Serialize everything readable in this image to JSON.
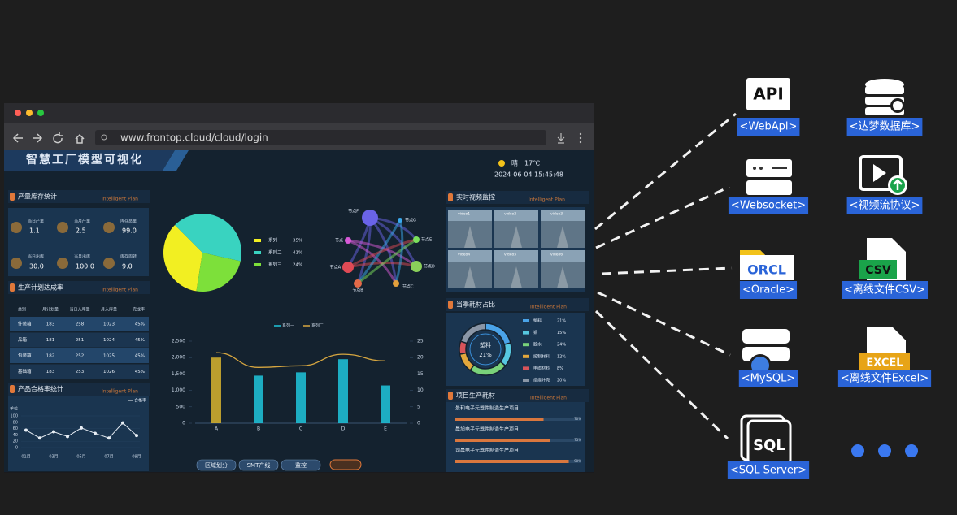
{
  "browser": {
    "url": "www.frontop.cloud/cloud/login"
  },
  "dashboard": {
    "title": "智慧工厂模型可视化",
    "weather": "晴",
    "temperature": "17℃",
    "datetime": "2024-06-04 15:45:48",
    "inventory": {
      "title": "产量库存统计",
      "subtitle": "Intelligent Plan",
      "items": [
        {
          "label": "当日产量",
          "value": "1.1"
        },
        {
          "label": "当月产量",
          "value": "2.5"
        },
        {
          "label": "库存总量",
          "value": "99.0"
        },
        {
          "label": "当日出库",
          "value": "30.0"
        },
        {
          "label": "当月出库",
          "value": "100.0"
        },
        {
          "label": "库存周转",
          "value": "9.0"
        }
      ]
    },
    "plan": {
      "title": "生产计划达成率",
      "subtitle": "Intelligent Plan",
      "header": [
        "类别",
        "月计划量",
        "当日入库量",
        "月入库量",
        "完成率"
      ],
      "rows": [
        [
          "件装箱",
          183,
          258,
          1023,
          "45%"
        ],
        [
          "品箱",
          181,
          251,
          1024,
          "45%"
        ],
        [
          "包装箱",
          182,
          252,
          1025,
          "45%"
        ],
        [
          "基础箱",
          183,
          253,
          1026,
          "45%"
        ]
      ]
    },
    "quality": {
      "type": "line",
      "title": "产品合格率统计",
      "subtitle": "Intelligent Plan",
      "series_name": "合格率",
      "y_label": "单位",
      "categories": [
        "01月",
        null,
        "03月",
        null,
        "05月",
        null,
        "07月",
        null,
        "09月"
      ],
      "values": [
        55,
        30,
        50,
        35,
        62,
        45,
        30,
        78,
        38
      ],
      "color": "#e8eef5",
      "ylim": [
        0,
        100
      ],
      "yticks": [
        0,
        20,
        40,
        60,
        80,
        100
      ]
    },
    "pie": {
      "type": "pie",
      "categories": [
        "系列一",
        "系列二",
        "系列三"
      ],
      "values": [
        35,
        41,
        24
      ],
      "value_labels": [
        "35%",
        "41%",
        "24%"
      ],
      "colors": [
        "#f2ef22",
        "#39d3c0",
        "#7de03a"
      ]
    },
    "network": {
      "nodes": [
        "节点F",
        "节点G",
        "节点E",
        "节点D",
        "节点C",
        "节点B",
        "节点A",
        "节点"
      ]
    },
    "combo": {
      "type": "bar",
      "categories": [
        "A",
        "B",
        "C",
        "D",
        "E"
      ],
      "series": [
        {
          "name": "系列一",
          "color": "#1ec6dc",
          "colors": [
            "#d8b42e",
            "#1ec6dc",
            "#1ec6dc",
            "#1ec6dc",
            "#1ec6dc"
          ],
          "values": [
            2000,
            1450,
            1550,
            1950,
            1150
          ]
        },
        {
          "name": "系列二",
          "color": "#d6a640",
          "axis": "y2",
          "values": [
            21.5,
            17,
            17.5,
            21,
            19
          ]
        }
      ],
      "ylim": [
        0,
        2500
      ],
      "yticks": [
        0,
        {
          "value": 500,
          "label": "500"
        },
        {
          "value": 1000,
          "label": "1,000"
        },
        {
          "value": 1500,
          "label": "1,500"
        },
        {
          "value": 2000,
          "label": "2,000"
        },
        {
          "value": 2500,
          "label": "2,500"
        }
      ],
      "y2lim": [
        0,
        25
      ],
      "y2ticks": [
        0,
        5,
        10,
        15,
        20,
        25
      ]
    },
    "buttons": [
      "区域划分",
      "SMT产线",
      "监控"
    ],
    "video": {
      "title": "实时视频监控",
      "subtitle": "Intelligent Plan",
      "feeds": [
        "video1",
        "video2",
        "video3",
        "video4",
        "video5",
        "video6"
      ]
    },
    "materials": {
      "type": "pie",
      "title": "当季耗材占比",
      "subtitle": "Intelligent Plan",
      "categories": [
        "塑料",
        "铜",
        "胶水",
        "控制材料",
        "电缆材料",
        "绝缘外壳"
      ],
      "values": [
        21,
        15,
        24,
        12,
        8,
        20
      ],
      "value_labels": [
        "21%",
        "15%",
        "24%",
        "12%",
        "8%",
        "20%"
      ],
      "colors": [
        "#4aa3e8",
        "#56c7e0",
        "#79d27a",
        "#e3a73c",
        "#d8545a",
        "#8a96a6"
      ]
    },
    "projects": {
      "type": "bar",
      "title": "项目生产耗材",
      "subtitle": "Intelligent Plan",
      "categories": [
        "景和电子元器件制造生产项目",
        "晨旭电子元器件制造生产项目",
        "司晨电子元器件制造生产项目"
      ],
      "values": [
        70,
        75,
        90
      ],
      "value_labels": [
        "70%",
        "75%",
        "90%"
      ],
      "color": "#d9773e",
      "xlim": [
        0,
        100
      ]
    }
  },
  "sources": [
    {
      "icon_text": "API",
      "label": "<WebApi>"
    },
    {
      "label": "<达梦数据库>"
    },
    {
      "label": "<Websocket>"
    },
    {
      "label": "<视频流协议>"
    },
    {
      "icon_text": "ORCL",
      "label": "<Oracle>"
    },
    {
      "icon_text": "CSV",
      "label": "<离线文件CSV>"
    },
    {
      "label": "<MySQL>"
    },
    {
      "icon_text": "EXCEL",
      "label": "<离线文件Excel>"
    },
    {
      "icon_text": "SQL",
      "label": "<SQL Server>"
    }
  ]
}
